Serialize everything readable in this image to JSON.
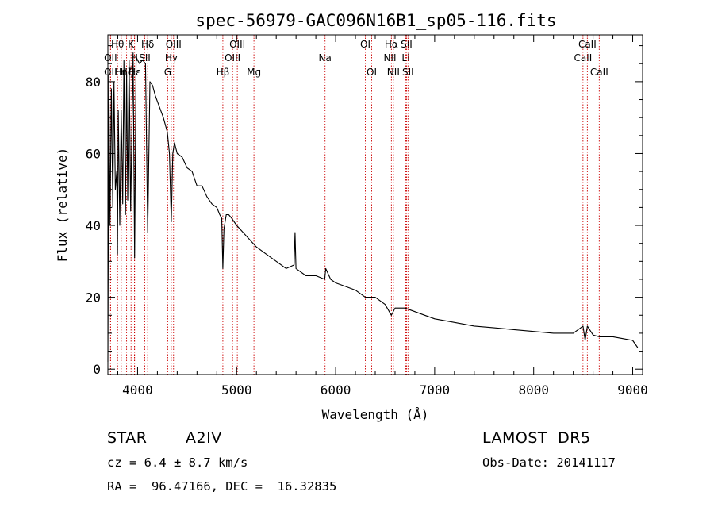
{
  "chart_data": {
    "type": "line",
    "title": "spec-56979-GAC096N16B1_sp05-116.fits",
    "xlabel": "Wavelength (Å)",
    "ylabel": "Flux (relative)",
    "xlim": [
      3700,
      9100
    ],
    "ylim": [
      -1.5,
      93
    ],
    "x_ticks": [
      4000,
      5000,
      6000,
      7000,
      8000,
      9000
    ],
    "y_ticks": [
      0,
      20,
      40,
      60,
      80
    ],
    "grid": false,
    "series": [
      {
        "x": [
          3700,
          3710,
          3722,
          3735,
          3750,
          3762,
          3775,
          3790,
          3797,
          3805,
          3820,
          3835,
          3850,
          3862,
          3878,
          3889,
          3900,
          3915,
          3930,
          3955,
          3970,
          3985,
          4000,
          4020,
          4050,
          4080,
          4102,
          4125,
          4150,
          4180,
          4220,
          4260,
          4300,
          4322,
          4340,
          4355,
          4372,
          4400,
          4450,
          4500,
          4550,
          4600,
          4650,
          4700,
          4750,
          4800,
          4830,
          4850,
          4861,
          4872,
          4895,
          4920,
          4950,
          5000,
          5100,
          5200,
          5300,
          5400,
          5500,
          5580,
          5590,
          5600,
          5700,
          5800,
          5890,
          5900,
          5950,
          6000,
          6100,
          6200,
          6300,
          6400,
          6500,
          6563,
          6600,
          6700,
          6800,
          6900,
          7000,
          7200,
          7400,
          7600,
          7800,
          8000,
          8200,
          8400,
          8498,
          8520,
          8542,
          8600,
          8662,
          8700,
          8800,
          8900,
          9000,
          9050
        ],
        "values": [
          2,
          82,
          40,
          78,
          45,
          80,
          50,
          55,
          32,
          72,
          40,
          72,
          46,
          86,
          43,
          82,
          47,
          86,
          44,
          88,
          31,
          87,
          86,
          85,
          86,
          85,
          38,
          80,
          79,
          76,
          73,
          70,
          66,
          60,
          41,
          60,
          63,
          60,
          59,
          56,
          55,
          51,
          51,
          48,
          46,
          45,
          43,
          42,
          28,
          39,
          43,
          43,
          42,
          40,
          37,
          34,
          32,
          30,
          28,
          29,
          38,
          28,
          26,
          26,
          25,
          28,
          25,
          24,
          23,
          22,
          20,
          20,
          18,
          15,
          17,
          17,
          16,
          15,
          14,
          13,
          12,
          11.5,
          11,
          10.5,
          10,
          10,
          12,
          8,
          12,
          9.5,
          9,
          9,
          9,
          8.5,
          8,
          6
        ]
      }
    ],
    "lines": [
      {
        "wl": 3727,
        "label": "OII",
        "row": 2
      },
      {
        "wl": 3798,
        "label": "Hθ",
        "row": 0
      },
      {
        "wl": 3727,
        "label": "OII",
        "row": 1
      },
      {
        "wl": 3835,
        "label": "Hη",
        "row": 2
      },
      {
        "wl": 3889,
        "label": "Hζ",
        "row": 2
      },
      {
        "wl": 3934,
        "label": "K",
        "row": 0
      },
      {
        "wl": 3968,
        "label": "H",
        "row": 1
      },
      {
        "wl": 3970,
        "label": "Hε",
        "row": 2
      },
      {
        "wl": 4102,
        "label": "Hδ",
        "row": 0
      },
      {
        "wl": 4072,
        "label": "SII",
        "row": 1
      },
      {
        "wl": 4304,
        "label": "G",
        "row": 2
      },
      {
        "wl": 4340,
        "label": "Hγ",
        "row": 1
      },
      {
        "wl": 4363,
        "label": "OIII",
        "row": 0
      },
      {
        "wl": 4861,
        "label": "Hβ",
        "row": 2
      },
      {
        "wl": 4959,
        "label": "OIII",
        "row": 1
      },
      {
        "wl": 5007,
        "label": "OIII",
        "row": 0
      },
      {
        "wl": 5175,
        "label": "Mg",
        "row": 2
      },
      {
        "wl": 5893,
        "label": "Na",
        "row": 1
      },
      {
        "wl": 6300,
        "label": "OI",
        "row": 0
      },
      {
        "wl": 6364,
        "label": "OI",
        "row": 2
      },
      {
        "wl": 6548,
        "label": "NII",
        "row": 1
      },
      {
        "wl": 6563,
        "label": "Hα",
        "row": 0
      },
      {
        "wl": 6583,
        "label": "NII",
        "row": 2
      },
      {
        "wl": 6708,
        "label": "Li",
        "row": 1
      },
      {
        "wl": 6716,
        "label": "SII",
        "row": 0
      },
      {
        "wl": 6731,
        "label": "SII",
        "row": 2
      },
      {
        "wl": 8498,
        "label": "CaII",
        "row": 1
      },
      {
        "wl": 8542,
        "label": "CaII",
        "row": 0
      },
      {
        "wl": 8662,
        "label": "CaII",
        "row": 2
      }
    ]
  },
  "info": {
    "object_class": "STAR",
    "subclass": "A2IV",
    "survey": "LAMOST  DR5",
    "velocity": "cz = 6.4 ± 8.7 km/s",
    "obs_date": "Obs-Date: 20141117",
    "coords": "RA =  96.47166, DEC =  16.32835"
  }
}
